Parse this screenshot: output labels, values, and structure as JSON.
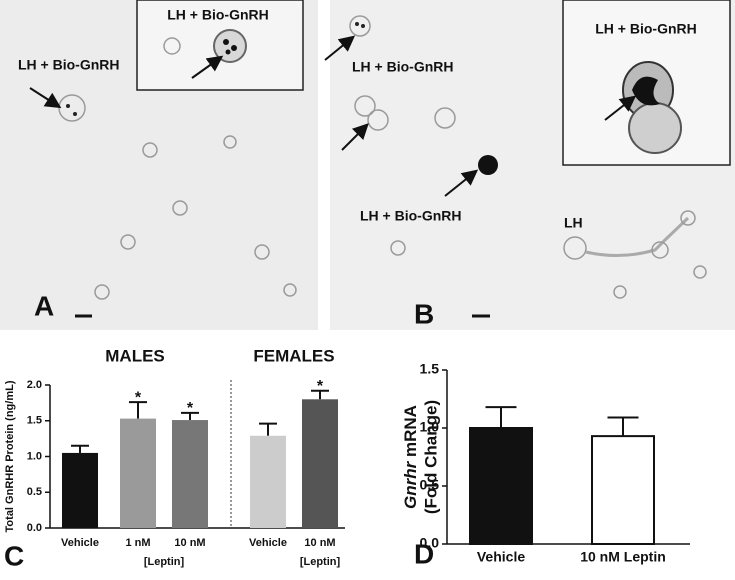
{
  "micrographs": [
    {
      "panel": "A",
      "labels": [
        "LH + Bio-GnRH"
      ],
      "inset_label": "LH + Bio-GnRH"
    },
    {
      "panel": "B",
      "labels": [
        "LH + Bio-GnRH",
        "LH + Bio-GnRH",
        "LH"
      ],
      "inset_label": "LH + Bio-GnRH"
    }
  ],
  "chart_data": [
    {
      "type": "bar",
      "panel": "C",
      "ylabel": "Total GnRHR Protein (ng/mL)",
      "categories": [
        "Vehicle",
        "1 nM",
        "10 nM",
        "Vehicle",
        "10 nM"
      ],
      "values": [
        1.05,
        1.53,
        1.51,
        1.29,
        1.8
      ],
      "errors": [
        0.1,
        0.23,
        0.1,
        0.17,
        0.12
      ],
      "colors": [
        "#111111",
        "#9a9a9a",
        "#777777",
        "#cccccc",
        "#555555"
      ],
      "ylim": [
        0,
        2
      ],
      "yticks": [
        {
          "value": 0,
          "label": "0.0"
        },
        {
          "value": 0.5,
          "label": "0.5"
        },
        {
          "value": 1,
          "label": "1.0"
        },
        {
          "value": 1.5,
          "label": "1.5"
        },
        {
          "value": 2,
          "label": "2.0"
        }
      ],
      "groups": [
        {
          "label": "MALES",
          "categories": [
            0,
            1,
            2
          ],
          "subtitle": "[Leptin]",
          "subtitle_categories": [
            1,
            2
          ]
        },
        {
          "label": "FEMALES",
          "categories": [
            3,
            4
          ],
          "subtitle": "[Leptin]",
          "subtitle_categories": [
            4
          ]
        }
      ],
      "annotations": [
        {
          "category": 1,
          "text": "*"
        },
        {
          "category": 2,
          "text": "*"
        },
        {
          "category": 4,
          "text": "*"
        }
      ]
    },
    {
      "type": "bar",
      "panel": "D",
      "ylabel": {
        "gene": "Gnrhr",
        "rest": "mRNA",
        "second_line": "(Fold Change)"
      },
      "categories": [
        "Vehicle",
        "10 nM Leptin"
      ],
      "values": [
        1.0,
        0.93
      ],
      "errors": [
        0.18,
        0.16
      ],
      "colors": [
        "#111111",
        "#ffffff"
      ],
      "edgecolor": "#111111",
      "ylim": [
        0,
        1.5
      ],
      "yticks": [
        {
          "value": 0,
          "label": "0.0"
        },
        {
          "value": 0.5,
          "label": "0.5"
        },
        {
          "value": 1,
          "label": "1.0"
        },
        {
          "value": 1.5,
          "label": "1.5"
        }
      ]
    }
  ]
}
